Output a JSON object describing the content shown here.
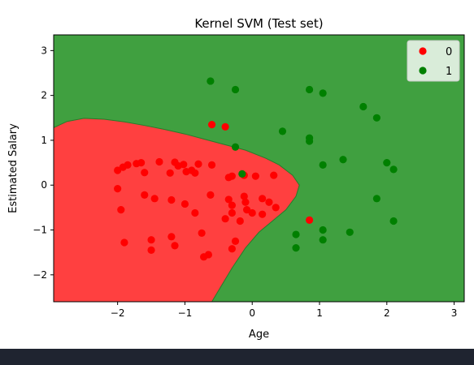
{
  "chart_data": {
    "type": "scatter",
    "title": "Kernel SVM (Test set)",
    "xlabel": "Age",
    "ylabel": "Estimated Salary",
    "xlim": [
      -2.95,
      3.15
    ],
    "ylim": [
      -2.6,
      3.35
    ],
    "xticks": [
      -2,
      -1,
      0,
      1,
      2,
      3
    ],
    "yticks": [
      -2,
      -1,
      0,
      1,
      2,
      3
    ],
    "grid": false,
    "legend_position": "top-right",
    "colors": {
      "region_0": "#ff4040",
      "region_1": "#40a040",
      "point_0": "#ff0000",
      "point_1": "#008000"
    },
    "decision_boundary": [
      [
        -2.95,
        1.28
      ],
      [
        -2.75,
        1.42
      ],
      [
        -2.5,
        1.49
      ],
      [
        -2.2,
        1.47
      ],
      [
        -1.9,
        1.41
      ],
      [
        -1.6,
        1.33
      ],
      [
        -1.3,
        1.24
      ],
      [
        -1.0,
        1.14
      ],
      [
        -0.7,
        1.02
      ],
      [
        -0.4,
        0.9
      ],
      [
        -0.1,
        0.78
      ],
      [
        0.2,
        0.6
      ],
      [
        0.4,
        0.45
      ],
      [
        0.6,
        0.22
      ],
      [
        0.7,
        0.0
      ],
      [
        0.65,
        -0.25
      ],
      [
        0.5,
        -0.55
      ],
      [
        0.3,
        -0.8
      ],
      [
        0.1,
        -1.05
      ],
      [
        -0.1,
        -1.4
      ],
      [
        -0.3,
        -1.85
      ],
      [
        -0.5,
        -2.35
      ],
      [
        -0.6,
        -2.6
      ]
    ],
    "series": [
      {
        "name": "0",
        "points": [
          [
            -0.6,
            1.35
          ],
          [
            -0.4,
            1.3
          ],
          [
            0.85,
            -0.78
          ],
          [
            -2.0,
            0.33
          ],
          [
            -1.92,
            0.4
          ],
          [
            -1.85,
            0.45
          ],
          [
            -1.72,
            0.48
          ],
          [
            -1.65,
            0.5
          ],
          [
            -1.6,
            0.28
          ],
          [
            -1.38,
            0.52
          ],
          [
            -1.22,
            0.27
          ],
          [
            -1.15,
            0.51
          ],
          [
            -1.1,
            0.43
          ],
          [
            -1.02,
            0.46
          ],
          [
            -0.98,
            0.3
          ],
          [
            -0.9,
            0.33
          ],
          [
            -0.85,
            0.27
          ],
          [
            -0.8,
            0.47
          ],
          [
            -0.6,
            0.45
          ],
          [
            -0.35,
            0.17
          ],
          [
            -0.3,
            0.2
          ],
          [
            -0.12,
            0.22
          ],
          [
            0.05,
            0.2
          ],
          [
            0.32,
            0.22
          ],
          [
            -2.0,
            -0.08
          ],
          [
            -1.95,
            -0.55
          ],
          [
            -1.6,
            -0.22
          ],
          [
            -1.45,
            -0.3
          ],
          [
            -1.2,
            -0.33
          ],
          [
            -1.0,
            -0.42
          ],
          [
            -0.85,
            -0.62
          ],
          [
            -0.62,
            -0.22
          ],
          [
            -0.35,
            -0.32
          ],
          [
            -0.3,
            -0.45
          ],
          [
            -0.12,
            -0.25
          ],
          [
            -0.1,
            -0.38
          ],
          [
            0.15,
            -0.3
          ],
          [
            0.25,
            -0.38
          ],
          [
            0.35,
            -0.5
          ],
          [
            -0.4,
            -0.75
          ],
          [
            -0.3,
            -0.62
          ],
          [
            -0.08,
            -0.55
          ],
          [
            0.0,
            -0.62
          ],
          [
            0.15,
            -0.65
          ],
          [
            -0.18,
            -0.8
          ],
          [
            -1.9,
            -1.28
          ],
          [
            -1.5,
            -1.22
          ],
          [
            -1.5,
            -1.45
          ],
          [
            -1.2,
            -1.15
          ],
          [
            -1.15,
            -1.35
          ],
          [
            -0.75,
            -1.07
          ],
          [
            -0.72,
            -1.6
          ],
          [
            -0.65,
            -1.55
          ],
          [
            -0.3,
            -1.42
          ],
          [
            -0.25,
            -1.25
          ]
        ]
      },
      {
        "name": "1",
        "points": [
          [
            -0.62,
            2.32
          ],
          [
            -0.25,
            2.13
          ],
          [
            0.85,
            2.13
          ],
          [
            1.05,
            2.05
          ],
          [
            1.65,
            1.75
          ],
          [
            1.85,
            1.5
          ],
          [
            0.45,
            1.2
          ],
          [
            0.85,
            1.05
          ],
          [
            0.85,
            0.98
          ],
          [
            -0.25,
            0.85
          ],
          [
            1.35,
            0.57
          ],
          [
            1.05,
            0.45
          ],
          [
            2.0,
            0.5
          ],
          [
            2.1,
            0.35
          ],
          [
            -0.15,
            0.25
          ],
          [
            1.85,
            -0.3
          ],
          [
            2.1,
            -0.8
          ],
          [
            0.65,
            -1.1
          ],
          [
            1.05,
            -1.0
          ],
          [
            1.45,
            -1.05
          ],
          [
            1.05,
            -1.22
          ],
          [
            0.65,
            -1.4
          ]
        ]
      }
    ]
  }
}
